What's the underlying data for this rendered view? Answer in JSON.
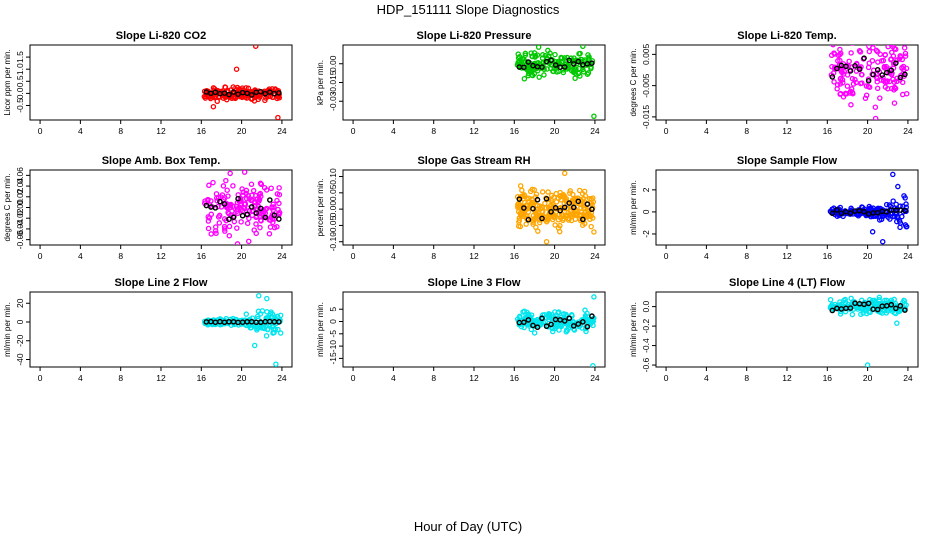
{
  "title": "HDP_151111  Slope Diagnostics",
  "xlabel": "Hour of Day (UTC)",
  "colors": {
    "black_series": "#000000",
    "co2": "#ff0000",
    "pressure": "#00c800",
    "temp": "#ff00ff",
    "rh": "#ffa500",
    "sample_flow": "#0000ff",
    "line_flow": "#00e5ee"
  },
  "chart_data": [
    {
      "type": "scatter",
      "title": "Slope Li-820 CO2",
      "ylabel": "Licor ppm per min.",
      "xlim": [
        -1,
        25
      ],
      "ylim": [
        -1.1,
        2.0
      ],
      "xticks": [
        "0",
        "4",
        "8",
        "12",
        "16",
        "20",
        "24"
      ],
      "yticks": [
        {
          "v": -0.5,
          "label": "-0.5"
        },
        {
          "v": 0.0,
          "label": "0.0"
        },
        {
          "v": 0.5,
          "label": "0.5"
        },
        {
          "v": 1.0,
          "label": "1.0"
        },
        {
          "v": 1.5,
          "label": "1.5"
        }
      ],
      "color": "#ff0000",
      "spread": 0.2,
      "black_spread": 0.08,
      "outliers": [
        [
          21.4,
          1.95
        ],
        [
          19.5,
          1.0
        ],
        [
          23.6,
          -1.0
        ],
        [
          17.2,
          -0.55
        ]
      ],
      "hatched": false
    },
    {
      "type": "scatter",
      "title": "Slope Li-820 Pressure",
      "ylabel": "kPa per min.",
      "xlim": [
        -1,
        25
      ],
      "ylim": [
        -0.045,
        0.015
      ],
      "xticks": [
        "0",
        "4",
        "8",
        "12",
        "16",
        "20",
        "24"
      ],
      "yticks": [
        {
          "v": -0.03,
          "label": "-0.03"
        },
        {
          "v": -0.015,
          "label": "-0.015"
        },
        {
          "v": 0.0,
          "label": "0.00"
        }
      ],
      "color": "#00c800",
      "spread": 0.008,
      "black_spread": 0.003,
      "outliers": [
        [
          23.9,
          -0.042
        ],
        [
          17.0,
          -0.012
        ],
        [
          22.8,
          0.014
        ]
      ],
      "hatched": false
    },
    {
      "type": "scatter",
      "title": "Slope Li-820 Temp.",
      "ylabel": "degrees C per min.",
      "xlim": [
        -1,
        25
      ],
      "ylim": [
        -0.016,
        0.008
      ],
      "xticks": [
        "0",
        "4",
        "8",
        "12",
        "16",
        "20",
        "24"
      ],
      "yticks": [
        {
          "v": -0.015,
          "label": "-0.015"
        },
        {
          "v": -0.005,
          "label": "-0.005"
        },
        {
          "v": 0.005,
          "label": "0.005"
        }
      ],
      "color": "#ff00ff",
      "spread": 0.008,
      "black_spread": 0.004,
      "outliers": [
        [
          22.5,
          0.0075
        ],
        [
          20.8,
          -0.0155
        ]
      ],
      "hatched": false
    },
    {
      "type": "scatter",
      "title": "Slope Amb. Box Temp.",
      "ylabel": "degrees C per min.",
      "xlim": [
        -1,
        25
      ],
      "ylim": [
        -0.07,
        0.07
      ],
      "xticks": [
        "0",
        "4",
        "8",
        "12",
        "16",
        "20",
        "24"
      ],
      "yticks": [
        {
          "v": -0.06,
          "label": "-0.06"
        },
        {
          "v": -0.04,
          "label": "-0.04"
        },
        {
          "v": -0.02,
          "label": "-0.02"
        },
        {
          "v": 0.0,
          "label": "0.00"
        },
        {
          "v": 0.02,
          "label": "0.02"
        },
        {
          "v": 0.04,
          "label": "0.04"
        },
        {
          "v": 0.06,
          "label": "0.06"
        }
      ],
      "color": "#ff00ff",
      "spread": 0.04,
      "black_spread": 0.025,
      "outliers": [
        [
          19.6,
          -0.068
        ],
        [
          20.3,
          0.066
        ]
      ],
      "hatched": false
    },
    {
      "type": "scatter",
      "title": "Slope Gas Stream RH",
      "ylabel": "percent per min.",
      "xlim": [
        -1,
        25
      ],
      "ylim": [
        -0.11,
        0.12
      ],
      "xticks": [
        "0",
        "4",
        "8",
        "12",
        "16",
        "20",
        "24"
      ],
      "yticks": [
        {
          "v": -0.1,
          "label": "-0.10"
        },
        {
          "v": -0.05,
          "label": "-0.05"
        },
        {
          "v": 0.0,
          "label": "0.00"
        },
        {
          "v": 0.05,
          "label": "0.05"
        },
        {
          "v": 0.1,
          "label": "0.10"
        }
      ],
      "color": "#ffa500",
      "spread": 0.045,
      "black_spread": 0.04,
      "outliers": [
        [
          19.2,
          -0.1
        ],
        [
          21.0,
          0.11
        ],
        [
          23.9,
          -0.07
        ]
      ],
      "hatched": true
    },
    {
      "type": "scatter",
      "title": "Slope Sample Flow",
      "ylabel": "ml/min per min.",
      "xlim": [
        -1,
        25
      ],
      "ylim": [
        -3.0,
        3.8
      ],
      "xticks": [
        "0",
        "4",
        "8",
        "12",
        "16",
        "20",
        "24"
      ],
      "yticks": [
        {
          "v": -2,
          "label": "-2"
        },
        {
          "v": 0,
          "label": "0"
        },
        {
          "v": 2,
          "label": "2"
        }
      ],
      "color": "#0000ff",
      "spread": 0.3,
      "black_spread": 0.2,
      "outliers": [
        [
          22.5,
          3.4
        ],
        [
          21.5,
          -2.7
        ],
        [
          23.0,
          2.3
        ],
        [
          20.5,
          -1.8
        ]
      ],
      "hatched": false,
      "late_spread": 1.4
    },
    {
      "type": "scatter",
      "title": "Slope Line 2 Flow",
      "ylabel": "ml/min per min.",
      "xlim": [
        -1,
        25
      ],
      "ylim": [
        -48,
        32
      ],
      "xticks": [
        "0",
        "4",
        "8",
        "12",
        "16",
        "20",
        "24"
      ],
      "yticks": [
        {
          "v": -40,
          "label": "-40"
        },
        {
          "v": -20,
          "label": "-20"
        },
        {
          "v": 0,
          "label": "0"
        },
        {
          "v": 20,
          "label": "20"
        }
      ],
      "color": "#00e5ee",
      "spread": 3,
      "black_spread": 0.5,
      "outliers": [
        [
          23.4,
          -45
        ],
        [
          21.3,
          -25
        ],
        [
          21.7,
          28
        ],
        [
          22.5,
          25
        ]
      ],
      "hatched": false,
      "late_spread": 14
    },
    {
      "type": "scatter",
      "title": "Slope Line 3 Flow",
      "ylabel": "ml/min per min.",
      "xlim": [
        -1,
        25
      ],
      "ylim": [
        -18.5,
        12
      ],
      "xticks": [
        "0",
        "4",
        "8",
        "12",
        "16",
        "20",
        "24"
      ],
      "yticks": [
        {
          "v": -15,
          "label": "-15"
        },
        {
          "v": -10,
          "label": "-10"
        },
        {
          "v": -5,
          "label": "-5"
        },
        {
          "v": 0,
          "label": "0"
        },
        {
          "v": 5,
          "label": "5"
        }
      ],
      "color": "#00e5ee",
      "spread": 3,
      "black_spread": 2.5,
      "outliers": [
        [
          23.8,
          -18
        ],
        [
          23.9,
          10
        ]
      ],
      "hatched": false
    },
    {
      "type": "scatter",
      "title": "Slope Line 4 (LT) Flow",
      "ylabel": "ml/min per min.",
      "xlim": [
        -1,
        25
      ],
      "ylim": [
        -0.62,
        0.15
      ],
      "xticks": [
        "0",
        "4",
        "8",
        "12",
        "16",
        "20",
        "24"
      ],
      "yticks": [
        {
          "v": -0.6,
          "label": "-0.6"
        },
        {
          "v": -0.4,
          "label": "-0.4"
        },
        {
          "v": -0.2,
          "label": "-0.2"
        },
        {
          "v": 0.0,
          "label": "0.0"
        }
      ],
      "color": "#00e5ee",
      "spread": 0.06,
      "black_spread": 0.04,
      "outliers": [
        [
          20.0,
          -0.6
        ],
        [
          22.9,
          -0.17
        ]
      ],
      "hatched": false
    }
  ]
}
